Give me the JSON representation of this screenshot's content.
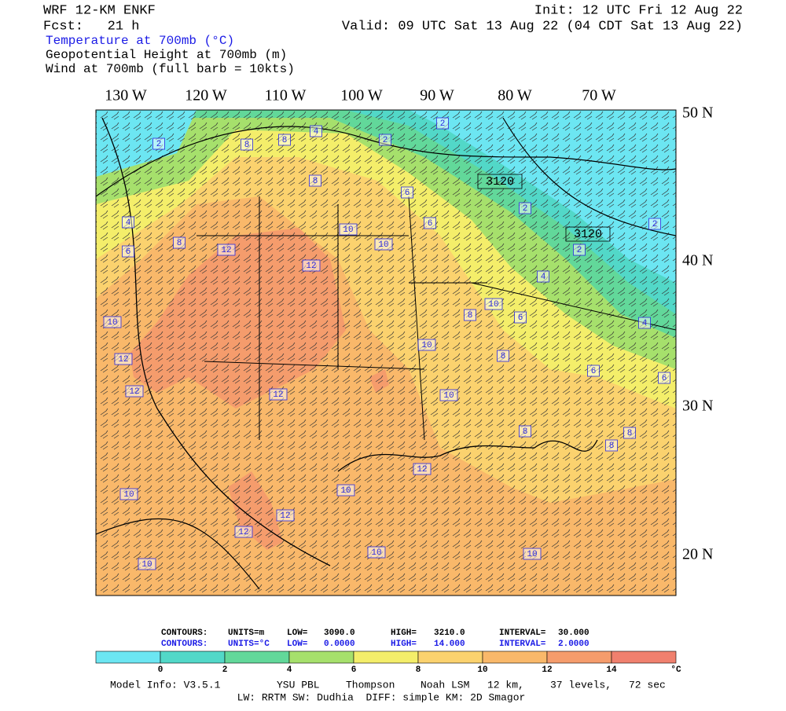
{
  "header": {
    "model": "WRF 12-KM ENKF",
    "fcst": "Fcst:   21 h",
    "init": "Init: 12 UTC Fri 12 Aug 22",
    "valid": "Valid: 09 UTC Sat 13 Aug 22 (04 CDT Sat 13 Aug 22)",
    "fields": [
      "Temperature at 700mb (°C)",
      "Geopotential Height at 700mb (m)",
      "Wind at 700mb (full barb = 10kts)"
    ]
  },
  "map": {
    "lon_labels": [
      "130 W",
      "120 W",
      "110 W",
      "100 W",
      "90 W",
      "80 W",
      "70 W"
    ],
    "lat_labels": [
      "50 N",
      "40 N",
      "30 N",
      "20 N"
    ],
    "temperature_labels": [
      "2",
      "8",
      "8",
      "4",
      "2",
      "2",
      "8",
      "10",
      "10",
      "6",
      "6",
      "2",
      "2",
      "2",
      "4",
      "8",
      "4",
      "6",
      "12",
      "12",
      "8",
      "10",
      "6",
      "10",
      "12",
      "12",
      "10",
      "8",
      "10",
      "12",
      "4",
      "6",
      "6",
      "8",
      "8",
      "8",
      "10",
      "10",
      "12",
      "12",
      "12",
      "10",
      "10",
      "10"
    ],
    "height_labels": [
      "3120",
      "3120"
    ]
  },
  "legend": {
    "height_row": [
      "CONTOURS:",
      "UNITS=m",
      "LOW=",
      "3090.0",
      "HIGH=",
      "3210.0",
      "INTERVAL=",
      "30.000"
    ],
    "temperature_row": [
      "CONTOURS:",
      "UNITS=°C",
      "LOW=",
      "0.0000",
      "HIGH=",
      "14.000",
      "INTERVAL=",
      "2.0000"
    ]
  },
  "colorbar": {
    "colors": [
      "#6ce6f2",
      "#52d8c8",
      "#62d89a",
      "#a6e06c",
      "#f4ee6a",
      "#fbd26e",
      "#f9b86a",
      "#f59c6c",
      "#f0806e"
    ],
    "labels": [
      "0",
      "2",
      "4",
      "6",
      "8",
      "10",
      "12",
      "14",
      "°C"
    ]
  },
  "footer": {
    "model_info": [
      "Model Info: V3.5.1",
      "YSU PBL",
      "Thompson",
      "Noah LSM",
      "12 km,",
      "37 levels,",
      "72 sec"
    ],
    "physics": "LW: RRTM SW: Dudhia  DIFF: simple KM: 2D Smagor"
  }
}
